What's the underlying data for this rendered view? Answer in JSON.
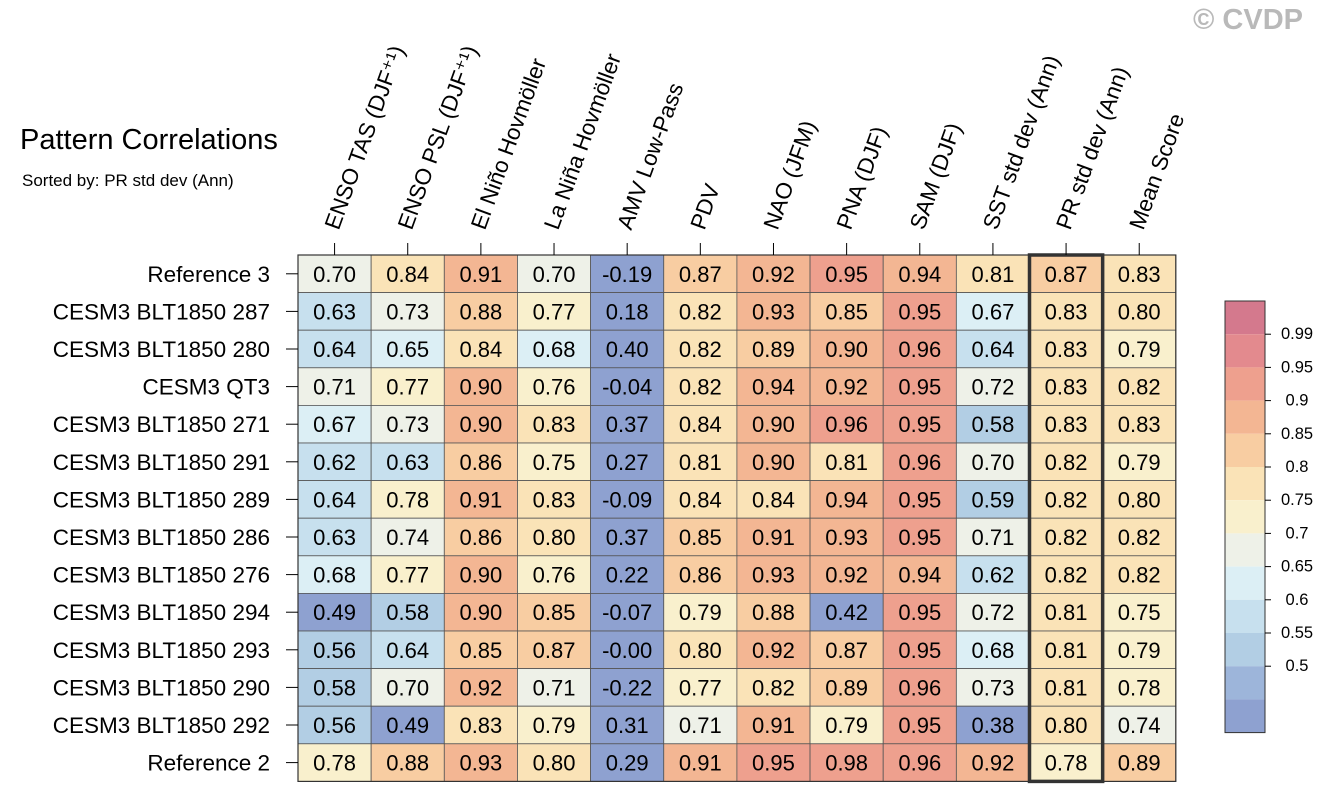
{
  "title": "Pattern Correlations",
  "subtitle": "Sorted by: PR std dev (Ann)",
  "watermark": "© CVDP",
  "chart_data": {
    "type": "heatmap",
    "columns": [
      "ENSO TAS (DJF⁺¹)",
      "ENSO PSL (DJF⁺¹)",
      "El Niño Hovmöller",
      "La Niña Hovmöller",
      "AMV Low-Pass",
      "PDV",
      "NAO (JFM)",
      "PNA (DJF)",
      "SAM (DJF)",
      "SST std dev (Ann)",
      "PR std dev (Ann)",
      "Mean Score"
    ],
    "rows": [
      "Reference 3",
      "CESM3 BLT1850 287",
      "CESM3 BLT1850 280",
      "CESM3 QT3",
      "CESM3 BLT1850 271",
      "CESM3 BLT1850 291",
      "CESM3 BLT1850 289",
      "CESM3 BLT1850 286",
      "CESM3 BLT1850 276",
      "CESM3 BLT1850 294",
      "CESM3 BLT1850 293",
      "CESM3 BLT1850 290",
      "CESM3 BLT1850 292",
      "Reference 2"
    ],
    "values": [
      [
        "0.70",
        "0.84",
        "0.91",
        "0.70",
        "-0.19",
        "0.87",
        "0.92",
        "0.95",
        "0.94",
        "0.81",
        "0.87",
        "0.83"
      ],
      [
        "0.63",
        "0.73",
        "0.88",
        "0.77",
        "0.18",
        "0.82",
        "0.93",
        "0.85",
        "0.95",
        "0.67",
        "0.83",
        "0.80"
      ],
      [
        "0.64",
        "0.65",
        "0.84",
        "0.68",
        "0.40",
        "0.82",
        "0.89",
        "0.90",
        "0.96",
        "0.64",
        "0.83",
        "0.79"
      ],
      [
        "0.71",
        "0.77",
        "0.90",
        "0.76",
        "-0.04",
        "0.82",
        "0.94",
        "0.92",
        "0.95",
        "0.72",
        "0.83",
        "0.82"
      ],
      [
        "0.67",
        "0.73",
        "0.90",
        "0.83",
        "0.37",
        "0.84",
        "0.90",
        "0.96",
        "0.95",
        "0.58",
        "0.83",
        "0.83"
      ],
      [
        "0.62",
        "0.63",
        "0.86",
        "0.75",
        "0.27",
        "0.81",
        "0.90",
        "0.81",
        "0.96",
        "0.70",
        "0.82",
        "0.79"
      ],
      [
        "0.64",
        "0.78",
        "0.91",
        "0.83",
        "-0.09",
        "0.84",
        "0.84",
        "0.94",
        "0.95",
        "0.59",
        "0.82",
        "0.80"
      ],
      [
        "0.63",
        "0.74",
        "0.86",
        "0.80",
        "0.37",
        "0.85",
        "0.91",
        "0.93",
        "0.95",
        "0.71",
        "0.82",
        "0.82"
      ],
      [
        "0.68",
        "0.77",
        "0.90",
        "0.76",
        "0.22",
        "0.86",
        "0.93",
        "0.92",
        "0.94",
        "0.62",
        "0.82",
        "0.82"
      ],
      [
        "0.49",
        "0.58",
        "0.90",
        "0.85",
        "-0.07",
        "0.79",
        "0.88",
        "0.42",
        "0.95",
        "0.72",
        "0.81",
        "0.75"
      ],
      [
        "0.56",
        "0.64",
        "0.85",
        "0.87",
        "-0.00",
        "0.80",
        "0.92",
        "0.87",
        "0.95",
        "0.68",
        "0.81",
        "0.79"
      ],
      [
        "0.58",
        "0.70",
        "0.92",
        "0.71",
        "-0.22",
        "0.77",
        "0.82",
        "0.89",
        "0.96",
        "0.73",
        "0.81",
        "0.78"
      ],
      [
        "0.56",
        "0.49",
        "0.83",
        "0.79",
        "0.31",
        "0.71",
        "0.91",
        "0.79",
        "0.95",
        "0.38",
        "0.80",
        "0.74"
      ],
      [
        "0.78",
        "0.88",
        "0.93",
        "0.80",
        "0.29",
        "0.91",
        "0.95",
        "0.98",
        "0.96",
        "0.92",
        "0.78",
        "0.89"
      ]
    ],
    "highlighted_column": "PR std dev (Ann)",
    "colorbar": {
      "labels": [
        "0.99",
        "0.95",
        "0.9",
        "0.85",
        "0.8",
        "0.75",
        "0.7",
        "0.65",
        "0.6",
        "0.55",
        "0.5"
      ],
      "colors_top_to_bottom": [
        "#d4798d",
        "#e38a8e",
        "#eea08e",
        "#f3b693",
        "#f8cda2",
        "#fae3b7",
        "#f9f0cd",
        "#eef1e8",
        "#dceff5",
        "#c7e0ee",
        "#b2cee4",
        "#9db5da",
        "#8ea1d0"
      ]
    },
    "color_scale": {
      "thresholds": [
        0.5,
        0.55,
        0.6,
        0.65,
        0.7,
        0.75,
        0.8,
        0.85,
        0.9,
        0.95,
        0.99
      ],
      "colors_low_to_high": [
        "#8ea1d0",
        "#9db5da",
        "#b2cee4",
        "#c7e0ee",
        "#dceff5",
        "#eef1e8",
        "#f9f0cd",
        "#fae3b7",
        "#f8cda2",
        "#f3b693",
        "#eea08e",
        "#e38a8e",
        "#d4798d"
      ]
    }
  }
}
